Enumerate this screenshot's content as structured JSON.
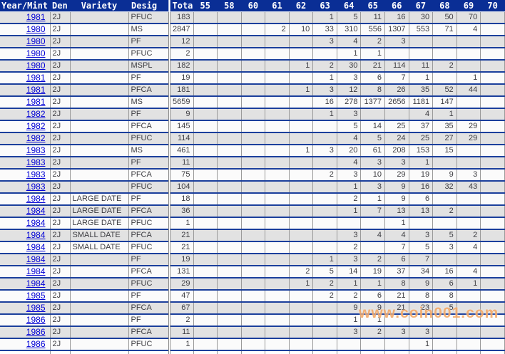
{
  "watermark": "www.coin001.com",
  "colors": {
    "header_bg": "#0a2e95",
    "row_separator": "#1b3f9c",
    "gridline": "#9a9a9a",
    "row_gray": "#e2e2e2",
    "row_white": "#fbfbfb",
    "year_link": "#0202d6",
    "watermark_orange": "#f2a35f"
  },
  "table": {
    "columns": [
      "Year/Mint",
      "Den",
      "Variety",
      "Desig",
      "Tota",
      "55",
      "58",
      "60",
      "61",
      "62",
      "63",
      "64",
      "65",
      "66",
      "67",
      "68",
      "69",
      "70"
    ],
    "grade_columns": [
      "55",
      "58",
      "60",
      "61",
      "62",
      "63",
      "64",
      "65",
      "66",
      "67",
      "68",
      "69",
      "70"
    ],
    "rows": [
      {
        "year": "1981",
        "den": "2J",
        "variety": "",
        "desig": "PFUC",
        "total": "183",
        "grades": [
          "",
          "",
          "",
          "",
          "",
          "1",
          "5",
          "11",
          "16",
          "30",
          "50",
          "70",
          ""
        ]
      },
      {
        "year": "1980",
        "den": "2J",
        "variety": "",
        "desig": "MS",
        "total": "2847",
        "grades": [
          "",
          "",
          "",
          "2",
          "10",
          "33",
          "310",
          "556",
          "1307",
          "553",
          "71",
          "4",
          ""
        ]
      },
      {
        "year": "1980",
        "den": "2J",
        "variety": "",
        "desig": "PF",
        "total": "12",
        "grades": [
          "",
          "",
          "",
          "",
          "",
          "3",
          "4",
          "2",
          "3",
          "",
          "",
          "",
          ""
        ]
      },
      {
        "year": "1980",
        "den": "2J",
        "variety": "",
        "desig": "PFUC",
        "total": "2",
        "grades": [
          "",
          "",
          "",
          "",
          "",
          "",
          "1",
          "1",
          "",
          "",
          "",
          "",
          ""
        ]
      },
      {
        "year": "1980",
        "den": "2J",
        "variety": "",
        "desig": "MSPL",
        "total": "182",
        "grades": [
          "",
          "",
          "",
          "",
          "1",
          "2",
          "30",
          "21",
          "114",
          "11",
          "2",
          "",
          ""
        ]
      },
      {
        "year": "1981",
        "den": "2J",
        "variety": "",
        "desig": "PF",
        "total": "19",
        "grades": [
          "",
          "",
          "",
          "",
          "",
          "1",
          "3",
          "6",
          "7",
          "1",
          "",
          "1",
          ""
        ]
      },
      {
        "year": "1981",
        "den": "2J",
        "variety": "",
        "desig": "PFCA",
        "total": "181",
        "grades": [
          "",
          "",
          "",
          "",
          "1",
          "3",
          "12",
          "8",
          "26",
          "35",
          "52",
          "44",
          ""
        ]
      },
      {
        "year": "1981",
        "den": "2J",
        "variety": "",
        "desig": "MS",
        "total": "5659",
        "grades": [
          "",
          "",
          "",
          "",
          "",
          "16",
          "278",
          "1377",
          "2656",
          "1181",
          "147",
          "",
          ""
        ]
      },
      {
        "year": "1982",
        "den": "2J",
        "variety": "",
        "desig": "PF",
        "total": "9",
        "grades": [
          "",
          "",
          "",
          "",
          "",
          "1",
          "3",
          "",
          "",
          "4",
          "1",
          "",
          ""
        ]
      },
      {
        "year": "1982",
        "den": "2J",
        "variety": "",
        "desig": "PFCA",
        "total": "145",
        "grades": [
          "",
          "",
          "",
          "",
          "",
          "",
          "5",
          "14",
          "25",
          "37",
          "35",
          "29",
          ""
        ]
      },
      {
        "year": "1982",
        "den": "2J",
        "variety": "",
        "desig": "PFUC",
        "total": "114",
        "grades": [
          "",
          "",
          "",
          "",
          "",
          "",
          "4",
          "5",
          "24",
          "25",
          "27",
          "29",
          ""
        ]
      },
      {
        "year": "1983",
        "den": "2J",
        "variety": "",
        "desig": "MS",
        "total": "461",
        "grades": [
          "",
          "",
          "",
          "",
          "1",
          "3",
          "20",
          "61",
          "208",
          "153",
          "15",
          "",
          ""
        ]
      },
      {
        "year": "1983",
        "den": "2J",
        "variety": "",
        "desig": "PF",
        "total": "11",
        "grades": [
          "",
          "",
          "",
          "",
          "",
          "",
          "4",
          "3",
          "3",
          "1",
          "",
          "",
          ""
        ]
      },
      {
        "year": "1983",
        "den": "2J",
        "variety": "",
        "desig": "PFCA",
        "total": "75",
        "grades": [
          "",
          "",
          "",
          "",
          "",
          "2",
          "3",
          "10",
          "29",
          "19",
          "9",
          "3",
          ""
        ]
      },
      {
        "year": "1983",
        "den": "2J",
        "variety": "",
        "desig": "PFUC",
        "total": "104",
        "grades": [
          "",
          "",
          "",
          "",
          "",
          "",
          "1",
          "3",
          "9",
          "16",
          "32",
          "43",
          ""
        ]
      },
      {
        "year": "1984",
        "den": "2J",
        "variety": "LARGE DATE",
        "desig": "PF",
        "total": "18",
        "grades": [
          "",
          "",
          "",
          "",
          "",
          "",
          "2",
          "1",
          "9",
          "6",
          "",
          "",
          ""
        ]
      },
      {
        "year": "1984",
        "den": "2J",
        "variety": "LARGE DATE",
        "desig": "PFCA",
        "total": "36",
        "grades": [
          "",
          "",
          "",
          "",
          "",
          "",
          "1",
          "7",
          "13",
          "13",
          "2",
          "",
          ""
        ]
      },
      {
        "year": "1984",
        "den": "2J",
        "variety": "LARGE DATE",
        "desig": "PFUC",
        "total": "1",
        "grades": [
          "",
          "",
          "",
          "",
          "",
          "",
          "",
          "",
          "1",
          "",
          "",
          "",
          ""
        ]
      },
      {
        "year": "1984",
        "den": "2J",
        "variety": "SMALL DATE",
        "desig": "PFCA",
        "total": "21",
        "grades": [
          "",
          "",
          "",
          "",
          "",
          "",
          "3",
          "4",
          "4",
          "3",
          "5",
          "2",
          ""
        ]
      },
      {
        "year": "1984",
        "den": "2J",
        "variety": "SMALL DATE",
        "desig": "PFUC",
        "total": "21",
        "grades": [
          "",
          "",
          "",
          "",
          "",
          "",
          "2",
          "",
          "7",
          "5",
          "3",
          "4",
          ""
        ]
      },
      {
        "year": "1984",
        "den": "2J",
        "variety": "",
        "desig": "PF",
        "total": "19",
        "grades": [
          "",
          "",
          "",
          "",
          "",
          "1",
          "3",
          "2",
          "6",
          "7",
          "",
          "",
          ""
        ]
      },
      {
        "year": "1984",
        "den": "2J",
        "variety": "",
        "desig": "PFCA",
        "total": "131",
        "grades": [
          "",
          "",
          "",
          "",
          "2",
          "5",
          "14",
          "19",
          "37",
          "34",
          "16",
          "4",
          ""
        ]
      },
      {
        "year": "1984",
        "den": "2J",
        "variety": "",
        "desig": "PFUC",
        "total": "29",
        "grades": [
          "",
          "",
          "",
          "",
          "1",
          "2",
          "1",
          "1",
          "8",
          "9",
          "6",
          "1",
          ""
        ]
      },
      {
        "year": "1985",
        "den": "2J",
        "variety": "",
        "desig": "PF",
        "total": "47",
        "grades": [
          "",
          "",
          "",
          "",
          "",
          "2",
          "2",
          "6",
          "21",
          "8",
          "8",
          "",
          ""
        ]
      },
      {
        "year": "1985",
        "den": "2J",
        "variety": "",
        "desig": "PFCA",
        "total": "67",
        "grades": [
          "",
          "",
          "",
          "",
          "",
          "",
          "9",
          "9",
          "21",
          "23",
          "5",
          "",
          ""
        ]
      },
      {
        "year": "1986",
        "den": "2J",
        "variety": "",
        "desig": "PF",
        "total": "2",
        "grades": [
          "",
          "",
          "",
          "",
          "",
          "",
          "1",
          "1",
          "",
          "",
          "",
          "",
          ""
        ]
      },
      {
        "year": "1986",
        "den": "2J",
        "variety": "",
        "desig": "PFCA",
        "total": "11",
        "grades": [
          "",
          "",
          "",
          "",
          "",
          "",
          "3",
          "2",
          "3",
          "3",
          "",
          "",
          ""
        ]
      },
      {
        "year": "1986",
        "den": "2J",
        "variety": "",
        "desig": "PFUC",
        "total": "1",
        "grades": [
          "",
          "",
          "",
          "",
          "",
          "",
          "",
          "",
          "",
          "1",
          "",
          "",
          ""
        ]
      }
    ]
  }
}
